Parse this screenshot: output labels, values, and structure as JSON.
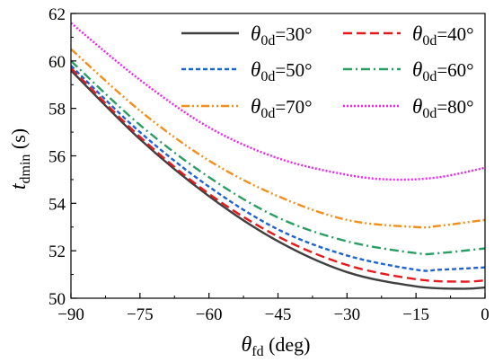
{
  "chart_data": {
    "type": "line",
    "xlabel": {
      "symbol": "θ",
      "sub": "fd",
      "unit": " (deg)"
    },
    "ylabel": {
      "symbol": "t",
      "sub": "dmin",
      "unit": " (s)"
    },
    "xlim": [
      -90,
      0
    ],
    "ylim": [
      50,
      62
    ],
    "xticks": [
      -90,
      -75,
      -60,
      -45,
      -30,
      -15,
      0
    ],
    "yticks": [
      50,
      52,
      54,
      56,
      58,
      60,
      62
    ],
    "x_tick_labels": [
      "−90",
      "−75",
      "−60",
      "−45",
      "−30",
      "−15",
      "0"
    ],
    "y_tick_labels": [
      "50",
      "52",
      "54",
      "56",
      "58",
      "60",
      "62"
    ],
    "grid": false,
    "legend": {
      "position": "top-right",
      "columns": 2
    },
    "series": [
      {
        "name": "θ0d=30°",
        "label_symbol": "θ",
        "label_sub": "0d",
        "label_value": "=30°",
        "color": "#404040",
        "dash": "solid",
        "x": [
          -90,
          -75,
          -60,
          -45,
          -30,
          -15,
          -5,
          0
        ],
        "y": [
          59.6,
          56.7,
          54.3,
          52.4,
          51.1,
          50.5,
          50.4,
          50.45
        ]
      },
      {
        "name": "θ0d=40°",
        "label_symbol": "θ",
        "label_sub": "0d",
        "label_value": "=40°",
        "color": "#e8191c",
        "dash": "dashed",
        "x": [
          -90,
          -75,
          -60,
          -45,
          -30,
          -15,
          -5,
          0
        ],
        "y": [
          59.7,
          56.8,
          54.4,
          52.6,
          51.4,
          50.8,
          50.7,
          50.75
        ]
      },
      {
        "name": "θ0d=50°",
        "label_symbol": "θ",
        "label_sub": "0d",
        "label_value": "=50°",
        "color": "#1f63d4",
        "dash": "short-dashed",
        "x": [
          -90,
          -75,
          -60,
          -45,
          -30,
          -15,
          -10,
          0
        ],
        "y": [
          59.8,
          57.0,
          54.7,
          52.9,
          51.8,
          51.2,
          51.2,
          51.3
        ]
      },
      {
        "name": "θ0d=60°",
        "label_symbol": "θ",
        "label_sub": "0d",
        "label_value": "=60°",
        "color": "#2a9d63",
        "dash": "dash-dot",
        "x": [
          -90,
          -75,
          -60,
          -45,
          -30,
          -15,
          -10,
          0
        ],
        "y": [
          60.0,
          57.3,
          55.1,
          53.4,
          52.4,
          51.9,
          51.9,
          52.1
        ]
      },
      {
        "name": "θ0d=70°",
        "label_symbol": "θ",
        "label_sub": "0d",
        "label_value": "=70°",
        "color": "#f28e1c",
        "dash": "dash-dot-dot",
        "x": [
          -90,
          -75,
          -60,
          -45,
          -30,
          -15,
          -10,
          0
        ],
        "y": [
          60.5,
          57.9,
          55.8,
          54.3,
          53.3,
          53.0,
          53.05,
          53.3
        ]
      },
      {
        "name": "θ0d=80°",
        "label_symbol": "θ",
        "label_sub": "0d",
        "label_value": "=80°",
        "color": "#ee22ee",
        "dash": "dotted",
        "x": [
          -90,
          -75,
          -60,
          -45,
          -30,
          -20,
          -10,
          0
        ],
        "y": [
          61.6,
          59.2,
          57.2,
          55.9,
          55.2,
          55.0,
          55.1,
          55.5
        ]
      }
    ]
  }
}
